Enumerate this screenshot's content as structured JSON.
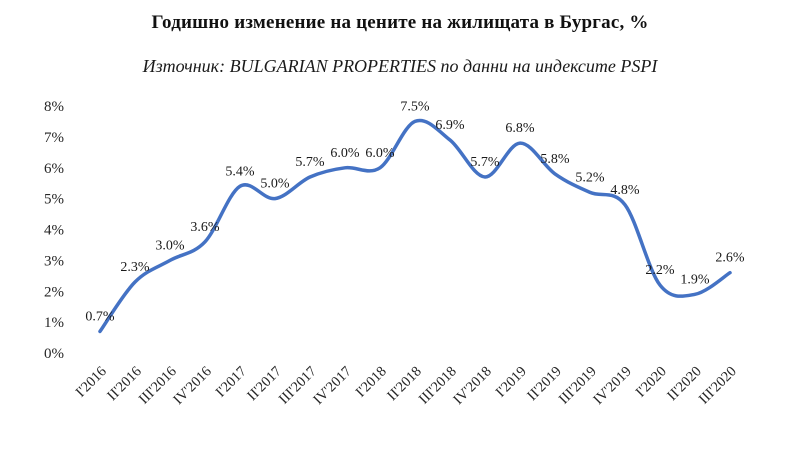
{
  "page": {
    "title": "Годишно изменение на цените на жилищата в Бургас, %",
    "subtitle": "Източник: BULGARIAN PROPERTIES по данни на индексите PSPI"
  },
  "chart_data": {
    "type": "line",
    "title": "Годишно изменение на цените на жилищата в Бургас, %",
    "subtitle": "Източник: BULGARIAN PROPERTIES по данни на индексите PSPI",
    "categories": [
      "I'2016",
      "II'2016",
      "III'2016",
      "IV'2016",
      "I'2017",
      "II'2017",
      "III'2017",
      "IV'2017",
      "I'2018",
      "II'2018",
      "III'2018",
      "IV'2018",
      "I'2019",
      "II'2019",
      "III'2019",
      "IV'2019",
      "I'2020",
      "II'2020",
      "III'2020"
    ],
    "values": [
      0.7,
      2.3,
      3.0,
      3.6,
      5.4,
      5.0,
      5.7,
      6.0,
      6.0,
      7.5,
      6.9,
      5.7,
      6.8,
      5.8,
      5.2,
      4.8,
      2.2,
      1.9,
      2.6
    ],
    "point_labels": [
      "0.7%",
      "2.3%",
      "3.0%",
      "3.6%",
      "5.4%",
      "5.0%",
      "5.7%",
      "6.0%",
      "6.0%",
      "7.5%",
      "6.9%",
      "5.7%",
      "6.8%",
      "5.8%",
      "5.2%",
      "4.8%",
      "2.2%",
      "1.9%",
      "2.6%"
    ],
    "y_ticks": [
      "0%",
      "1%",
      "2%",
      "3%",
      "4%",
      "5%",
      "6%",
      "7%",
      "8%"
    ],
    "ylim": [
      0,
      8
    ],
    "xlabel": "",
    "ylabel": "",
    "grid": false,
    "legend": "none",
    "line_color": "#4472C4",
    "text_color": "#262626"
  }
}
